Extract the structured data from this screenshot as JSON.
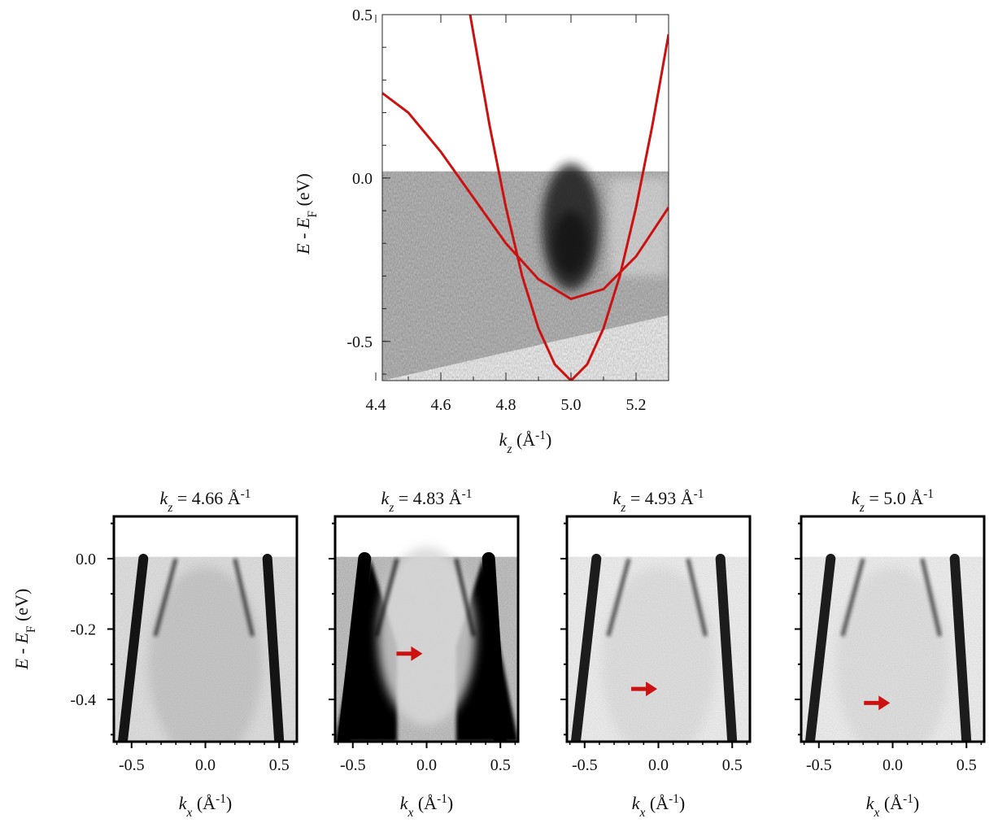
{
  "chart_data": [
    {
      "type": "heatmap",
      "panel": "top",
      "xlabel": "k_z (Å^-1)",
      "xlabel_parts": {
        "var": "k",
        "sub": "z",
        "unit": "(Å",
        "sup": "-1",
        "close": ")"
      },
      "ylabel": "E - E_F (eV)",
      "ylabel_parts": {
        "a": "E",
        "mid": " - ",
        "b": "E",
        "sub": "F",
        "unit": " (eV)"
      },
      "xlim": [
        4.42,
        5.3
      ],
      "ylim": [
        -0.62,
        0.5
      ],
      "x_ticks": [
        4.4,
        4.6,
        4.8,
        5.0,
        5.2
      ],
      "x_tick_labels": [
        "4.4",
        "4.6",
        "4.8",
        "5.0",
        "5.2"
      ],
      "y_ticks": [
        0.5,
        0.0,
        -0.5
      ],
      "y_tick_labels": [
        "0.5",
        "0.0",
        "-0.5"
      ],
      "colormap": "grayscale",
      "intensity_feature": {
        "k_z_center": 5.0,
        "E_range": [
          -0.35,
          0.0
        ],
        "description_level": "dark"
      },
      "band_color": "#cc1111",
      "bands": [
        {
          "x": [
            4.42,
            4.5,
            4.6,
            4.7,
            4.8,
            4.9,
            5.0,
            5.1,
            5.2,
            5.3
          ],
          "y": [
            0.26,
            0.2,
            0.08,
            -0.06,
            -0.2,
            -0.31,
            -0.37,
            -0.34,
            -0.24,
            -0.09
          ]
        },
        {
          "x": [
            4.69,
            4.75,
            4.8,
            4.85,
            4.9,
            4.95,
            5.0,
            5.05,
            5.1,
            5.15,
            5.2,
            5.25,
            5.3
          ],
          "y": [
            0.5,
            0.16,
            -0.09,
            -0.3,
            -0.46,
            -0.57,
            -0.62,
            -0.57,
            -0.46,
            -0.3,
            -0.09,
            0.16,
            0.44
          ]
        }
      ]
    },
    {
      "type": "heatmap",
      "panel": "bottom-1",
      "title_parts": {
        "var": "k",
        "sub": "z",
        "value": " = 4.66 Å",
        "sup": "-1"
      },
      "xlabel_parts": {
        "var": "k",
        "sub": "x",
        "unit": " (Å",
        "sup": "-1",
        "close": ")"
      },
      "xlim": [
        -0.62,
        0.62
      ],
      "ylim": [
        -0.52,
        0.12
      ],
      "x_tick_labels": [
        "-0.5",
        "0.0",
        "0.5"
      ],
      "colormap": "grayscale",
      "contrast": "medium",
      "arrow": null
    },
    {
      "type": "heatmap",
      "panel": "bottom-2",
      "title_parts": {
        "var": "k",
        "sub": "z",
        "value": " = 4.83 Å",
        "sup": "-1"
      },
      "xlabel_parts": {
        "var": "k",
        "sub": "x",
        "unit": " (Å",
        "sup": "-1",
        "close": ")"
      },
      "xlim": [
        -0.62,
        0.62
      ],
      "ylim": [
        -0.52,
        0.12
      ],
      "x_tick_labels": [
        "-0.5",
        "0.0",
        "0.5"
      ],
      "colormap": "grayscale",
      "contrast": "high",
      "arrow": {
        "k_x": -0.05,
        "E": -0.27,
        "color": "#cc1111"
      }
    },
    {
      "type": "heatmap",
      "panel": "bottom-3",
      "title_parts": {
        "var": "k",
        "sub": "z",
        "value": " = 4.93 Å",
        "sup": "-1"
      },
      "xlabel_parts": {
        "var": "k",
        "sub": "x",
        "unit": " (Å",
        "sup": "-1",
        "close": ")"
      },
      "xlim": [
        -0.62,
        0.62
      ],
      "ylim": [
        -0.52,
        0.12
      ],
      "x_tick_labels": [
        "-0.5",
        "0.0",
        "0.5"
      ],
      "colormap": "grayscale",
      "contrast": "low",
      "arrow": {
        "k_x": -0.03,
        "E": -0.37,
        "color": "#cc1111"
      }
    },
    {
      "type": "heatmap",
      "panel": "bottom-4",
      "title_parts": {
        "var": "k",
        "sub": "z",
        "value": " = 5.0 Å",
        "sup": "-1"
      },
      "xlabel_parts": {
        "var": "k",
        "sub": "x",
        "unit": " (Å",
        "sup": "-1",
        "close": ")"
      },
      "ylabel_parts": {
        "a": "E",
        "mid": " - ",
        "b": "E",
        "sub": "F",
        "unit": " (eV)"
      },
      "xlim": [
        -0.62,
        0.62
      ],
      "ylim": [
        -0.52,
        0.12
      ],
      "x_tick_labels": [
        "-0.5",
        "0.0",
        "0.5"
      ],
      "y_ticks": [
        0.0,
        -0.2,
        -0.4
      ],
      "y_tick_labels": [
        "0.0",
        "-0.2",
        "-0.4"
      ],
      "colormap": "grayscale",
      "contrast": "low",
      "arrow": {
        "k_x": -0.04,
        "E": -0.41,
        "color": "#cc1111"
      }
    }
  ]
}
